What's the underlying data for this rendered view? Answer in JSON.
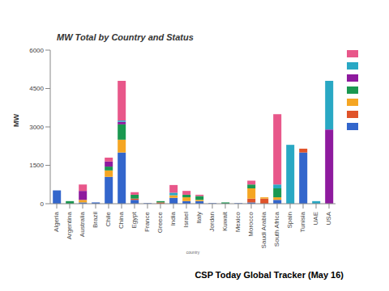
{
  "chart_data": {
    "type": "bar",
    "title": "MW Total by Country and Status",
    "y_label": "MW",
    "x_label": "country",
    "annotations": [
      "CSP Today Global Tracker (May 16)"
    ],
    "stacked": true,
    "grid": false,
    "legend": "right",
    "categories": [
      "Algeria",
      "Argentina",
      "Australia",
      "Brazil",
      "Chile",
      "China",
      "Egypt",
      "France",
      "Greece",
      "India",
      "Israel",
      "Italy",
      "Jordan",
      "Kuwait",
      "Mexico",
      "Morocco",
      "Saudi Arabia",
      "South Africa",
      "Spain",
      "Tunisia",
      "UAE",
      "USA"
    ],
    "ylim": [
      0,
      6000
    ],
    "yticks": [
      0,
      1500,
      3000,
      4500,
      6000
    ],
    "series": [
      {
        "color": "#3366cc",
        "values": [
          520,
          0,
          50,
          50,
          1050,
          2000,
          150,
          20,
          0,
          230,
          100,
          100,
          20,
          0,
          20,
          50,
          0,
          150,
          0,
          2000,
          0,
          0
        ]
      },
      {
        "color": "#e0532a",
        "values": [
          0,
          0,
          0,
          0,
          0,
          0,
          50,
          0,
          50,
          0,
          0,
          0,
          0,
          0,
          0,
          150,
          200,
          0,
          0,
          150,
          0,
          0
        ]
      },
      {
        "color": "#f5a623",
        "values": [
          0,
          0,
          100,
          0,
          250,
          500,
          0,
          0,
          0,
          100,
          150,
          50,
          0,
          0,
          0,
          400,
          50,
          100,
          0,
          0,
          0,
          0
        ]
      },
      {
        "color": "#1a9850",
        "values": [
          0,
          100,
          0,
          0,
          150,
          600,
          150,
          0,
          50,
          0,
          100,
          150,
          0,
          50,
          0,
          150,
          0,
          350,
          0,
          0,
          0,
          0
        ]
      },
      {
        "color": "#8e1a9e",
        "values": [
          0,
          0,
          350,
          0,
          200,
          100,
          0,
          0,
          0,
          0,
          0,
          0,
          0,
          0,
          0,
          0,
          0,
          0,
          0,
          0,
          0,
          2900
        ]
      },
      {
        "color": "#29a8c4",
        "values": [
          0,
          0,
          0,
          0,
          0,
          50,
          0,
          0,
          0,
          100,
          0,
          0,
          0,
          0,
          0,
          0,
          0,
          150,
          2300,
          0,
          100,
          1900
        ]
      },
      {
        "color": "#e8578a",
        "values": [
          0,
          0,
          250,
          0,
          150,
          1550,
          100,
          0,
          0,
          300,
          150,
          50,
          0,
          0,
          0,
          150,
          0,
          2750,
          0,
          0,
          0,
          0
        ]
      }
    ]
  }
}
